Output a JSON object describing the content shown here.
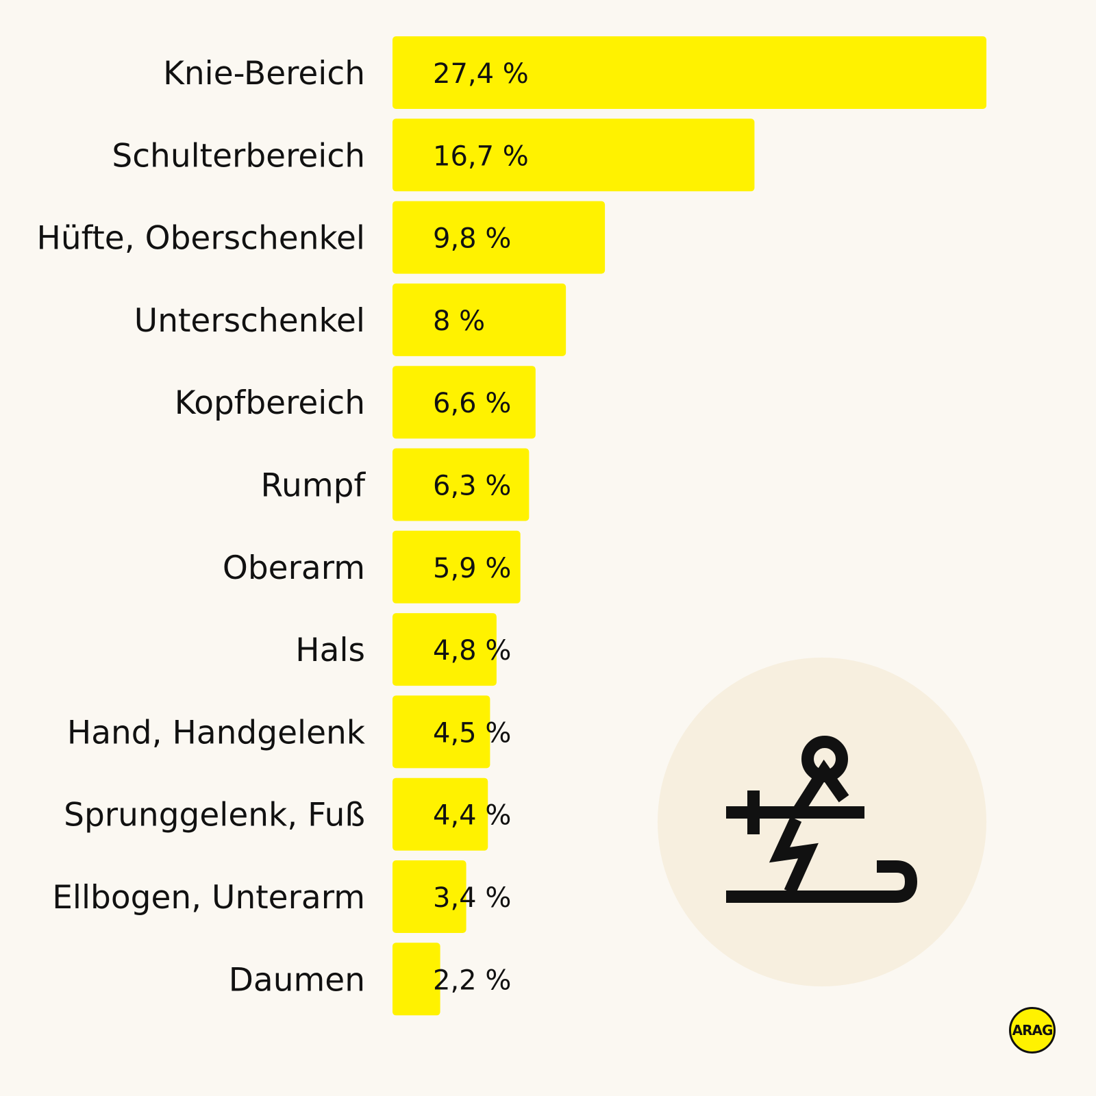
{
  "colors": {
    "background": "#FBF8F2",
    "bar": "#FFF200",
    "text": "#111111",
    "circle": "#F7EFDF",
    "logo": "#FFF200"
  },
  "chart_data": {
    "type": "bar",
    "orientation": "horizontal",
    "categories": [
      "Knie-Bereich",
      "Schulterbereich",
      "Hüfte, Oberschenkel",
      "Unterschenkel",
      "Kopfbereich",
      "Rumpf",
      "Oberarm",
      "Hals",
      "Hand, Handgelenk",
      "Sprunggelenk, Fuß",
      "Ellbogen, Unterarm",
      "Daumen"
    ],
    "values": [
      27.4,
      16.7,
      9.8,
      8,
      6.6,
      6.3,
      5.9,
      4.8,
      4.5,
      4.4,
      3.4,
      2.2
    ],
    "value_labels": [
      "27,4 %",
      "16,7 %",
      "9,8 %",
      "8 %",
      "6,6 %",
      "6,3 %",
      "5,9 %",
      "4,8 %",
      "4,5 %",
      "4,4 %",
      "3,4 %",
      "2,2 %"
    ],
    "xlim": [
      0,
      27.4
    ],
    "grid": false,
    "legend": "none"
  },
  "illustration": {
    "icon": "skier-icon"
  },
  "logo": {
    "text": "ARAG"
  }
}
